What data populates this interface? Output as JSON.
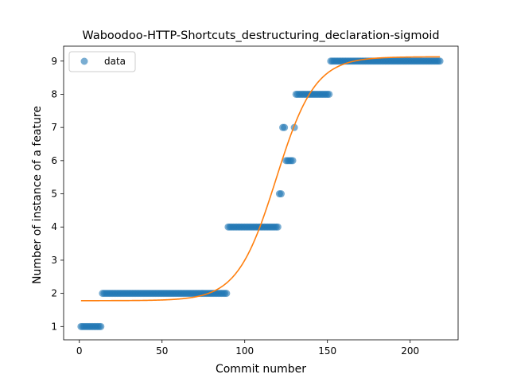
{
  "chart_data": {
    "type": "scatter",
    "title": "Waboodoo-HTTP-Shortcuts_destructuring_declaration-sigmoid",
    "xlabel": "Commit number",
    "ylabel": "Number of instance of a feature",
    "xlim": [
      -9.5,
      229
    ],
    "ylim": [
      0.6,
      9.45
    ],
    "xticks": [
      0,
      50,
      100,
      150,
      200
    ],
    "yticks": [
      1,
      2,
      3,
      4,
      5,
      6,
      7,
      8,
      9
    ],
    "grid": false,
    "legend": {
      "position": "top-left",
      "entries": [
        "data"
      ]
    },
    "colors": {
      "data": "#1f77b4",
      "fit": "#ff7f0e"
    },
    "series": [
      {
        "name": "data",
        "kind": "scatter",
        "segments": [
          {
            "x_start": 1,
            "x_end": 13,
            "y": 1
          },
          {
            "x_start": 14,
            "x_end": 89,
            "y": 2
          },
          {
            "x_start": 90,
            "x_end": 120,
            "y": 4
          },
          {
            "x_start": 121,
            "x_end": 122,
            "y": 5
          },
          {
            "x_start": 123,
            "x_end": 124,
            "y": 7
          },
          {
            "x_start": 125,
            "x_end": 129,
            "y": 6
          },
          {
            "x_start": 130,
            "x_end": 130,
            "y": 7
          },
          {
            "x_start": 131,
            "x_end": 151,
            "y": 8
          },
          {
            "x_start": 152,
            "x_end": 218,
            "y": 9
          }
        ]
      },
      {
        "kind": "line",
        "model": "sigmoid",
        "params": {
          "L": 7.35,
          "x0": 119,
          "k": 0.085,
          "b": 1.78
        },
        "x_range": [
          1,
          218
        ]
      }
    ]
  }
}
